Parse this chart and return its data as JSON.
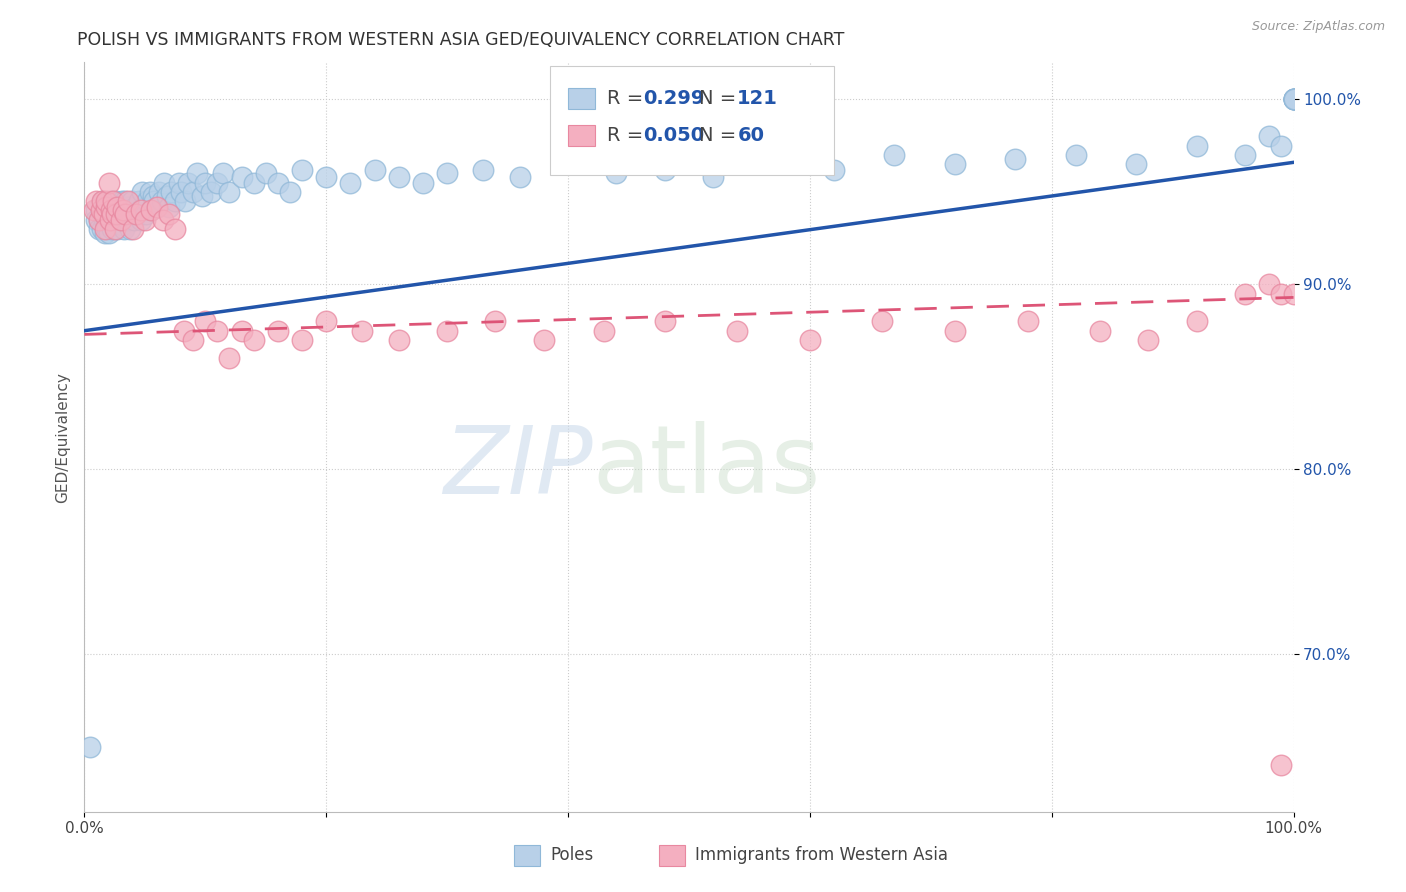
{
  "title": "POLISH VS IMMIGRANTS FROM WESTERN ASIA GED/EQUIVALENCY CORRELATION CHART",
  "source": "Source: ZipAtlas.com",
  "ylabel": "GED/Equivalency",
  "xlim": [
    0.0,
    1.0
  ],
  "ylim": [
    0.615,
    1.02
  ],
  "ytick_positions": [
    0.7,
    0.8,
    0.9,
    1.0
  ],
  "ytick_labels": [
    "70.0%",
    "80.0%",
    "90.0%",
    "100.0%"
  ],
  "legend_labels": [
    "Poles",
    "Immigrants from Western Asia"
  ],
  "poles_color": "#b8d0e8",
  "imm_color": "#f4afc0",
  "poles_edge": "#90b8d8",
  "imm_edge": "#e888a0",
  "trend_poles_color": "#2255aa",
  "trend_imm_color": "#dd5577",
  "R_poles": 0.299,
  "N_poles": 121,
  "R_imm": 0.05,
  "N_imm": 60,
  "background_color": "#ffffff",
  "grid_color": "#cccccc",
  "watermark_zip": "ZIP",
  "watermark_atlas": "atlas",
  "trend_poles_start": 0.875,
  "trend_poles_end": 0.966,
  "trend_imm_start": 0.873,
  "trend_imm_end": 0.893,
  "poles_x": [
    0.005,
    0.01,
    0.01,
    0.012,
    0.012,
    0.014,
    0.015,
    0.015,
    0.015,
    0.016,
    0.016,
    0.017,
    0.018,
    0.018,
    0.018,
    0.019,
    0.019,
    0.02,
    0.02,
    0.02,
    0.021,
    0.021,
    0.022,
    0.022,
    0.023,
    0.023,
    0.024,
    0.025,
    0.025,
    0.026,
    0.026,
    0.027,
    0.027,
    0.028,
    0.028,
    0.03,
    0.03,
    0.031,
    0.031,
    0.032,
    0.032,
    0.033,
    0.033,
    0.034,
    0.034,
    0.035,
    0.036,
    0.036,
    0.037,
    0.038,
    0.039,
    0.04,
    0.041,
    0.042,
    0.043,
    0.045,
    0.046,
    0.047,
    0.048,
    0.05,
    0.051,
    0.052,
    0.054,
    0.055,
    0.057,
    0.058,
    0.06,
    0.062,
    0.064,
    0.066,
    0.068,
    0.07,
    0.072,
    0.075,
    0.078,
    0.08,
    0.083,
    0.086,
    0.09,
    0.093,
    0.097,
    0.1,
    0.105,
    0.11,
    0.115,
    0.12,
    0.13,
    0.14,
    0.15,
    0.16,
    0.17,
    0.18,
    0.2,
    0.22,
    0.24,
    0.26,
    0.28,
    0.3,
    0.33,
    0.36,
    0.4,
    0.44,
    0.48,
    0.52,
    0.57,
    0.62,
    0.67,
    0.72,
    0.77,
    0.82,
    0.87,
    0.92,
    0.96,
    0.98,
    0.99,
    1.0,
    1.0,
    1.0,
    1.0,
    1.0,
    1.0
  ],
  "poles_y": [
    0.65,
    0.94,
    0.935,
    0.935,
    0.93,
    0.94,
    0.945,
    0.938,
    0.93,
    0.935,
    0.942,
    0.928,
    0.932,
    0.94,
    0.935,
    0.93,
    0.938,
    0.942,
    0.935,
    0.928,
    0.94,
    0.935,
    0.938,
    0.945,
    0.93,
    0.94,
    0.935,
    0.942,
    0.938,
    0.935,
    0.945,
    0.94,
    0.93,
    0.938,
    0.942,
    0.935,
    0.94,
    0.945,
    0.932,
    0.938,
    0.942,
    0.935,
    0.93,
    0.94,
    0.945,
    0.938,
    0.935,
    0.942,
    0.94,
    0.93,
    0.945,
    0.94,
    0.935,
    0.942,
    0.938,
    0.945,
    0.94,
    0.935,
    0.95,
    0.942,
    0.938,
    0.945,
    0.95,
    0.94,
    0.948,
    0.945,
    0.942,
    0.95,
    0.945,
    0.955,
    0.948,
    0.942,
    0.95,
    0.945,
    0.955,
    0.95,
    0.945,
    0.955,
    0.95,
    0.96,
    0.948,
    0.955,
    0.95,
    0.955,
    0.96,
    0.95,
    0.958,
    0.955,
    0.96,
    0.955,
    0.95,
    0.962,
    0.958,
    0.955,
    0.962,
    0.958,
    0.955,
    0.96,
    0.962,
    0.958,
    0.965,
    0.96,
    0.962,
    0.958,
    0.965,
    0.962,
    0.97,
    0.965,
    0.968,
    0.97,
    0.965,
    0.975,
    0.97,
    0.98,
    0.975,
    1.0,
    1.0,
    1.0,
    1.0,
    1.0,
    1.0
  ],
  "imm_x": [
    0.008,
    0.01,
    0.012,
    0.014,
    0.015,
    0.016,
    0.017,
    0.018,
    0.018,
    0.02,
    0.021,
    0.022,
    0.023,
    0.024,
    0.025,
    0.026,
    0.027,
    0.03,
    0.032,
    0.034,
    0.036,
    0.04,
    0.043,
    0.047,
    0.05,
    0.055,
    0.06,
    0.065,
    0.07,
    0.075,
    0.082,
    0.09,
    0.1,
    0.11,
    0.12,
    0.13,
    0.14,
    0.16,
    0.18,
    0.2,
    0.23,
    0.26,
    0.3,
    0.34,
    0.38,
    0.43,
    0.48,
    0.54,
    0.6,
    0.66,
    0.72,
    0.78,
    0.84,
    0.88,
    0.92,
    0.96,
    0.98,
    0.99,
    0.99,
    1.0
  ],
  "imm_y": [
    0.94,
    0.945,
    0.935,
    0.94,
    0.945,
    0.938,
    0.93,
    0.942,
    0.945,
    0.955,
    0.935,
    0.94,
    0.938,
    0.945,
    0.93,
    0.938,
    0.942,
    0.935,
    0.94,
    0.938,
    0.945,
    0.93,
    0.938,
    0.94,
    0.935,
    0.94,
    0.942,
    0.935,
    0.938,
    0.93,
    0.875,
    0.87,
    0.88,
    0.875,
    0.86,
    0.875,
    0.87,
    0.875,
    0.87,
    0.88,
    0.875,
    0.87,
    0.875,
    0.88,
    0.87,
    0.875,
    0.88,
    0.875,
    0.87,
    0.88,
    0.875,
    0.88,
    0.875,
    0.87,
    0.88,
    0.895,
    0.9,
    0.895,
    0.64,
    0.895
  ]
}
